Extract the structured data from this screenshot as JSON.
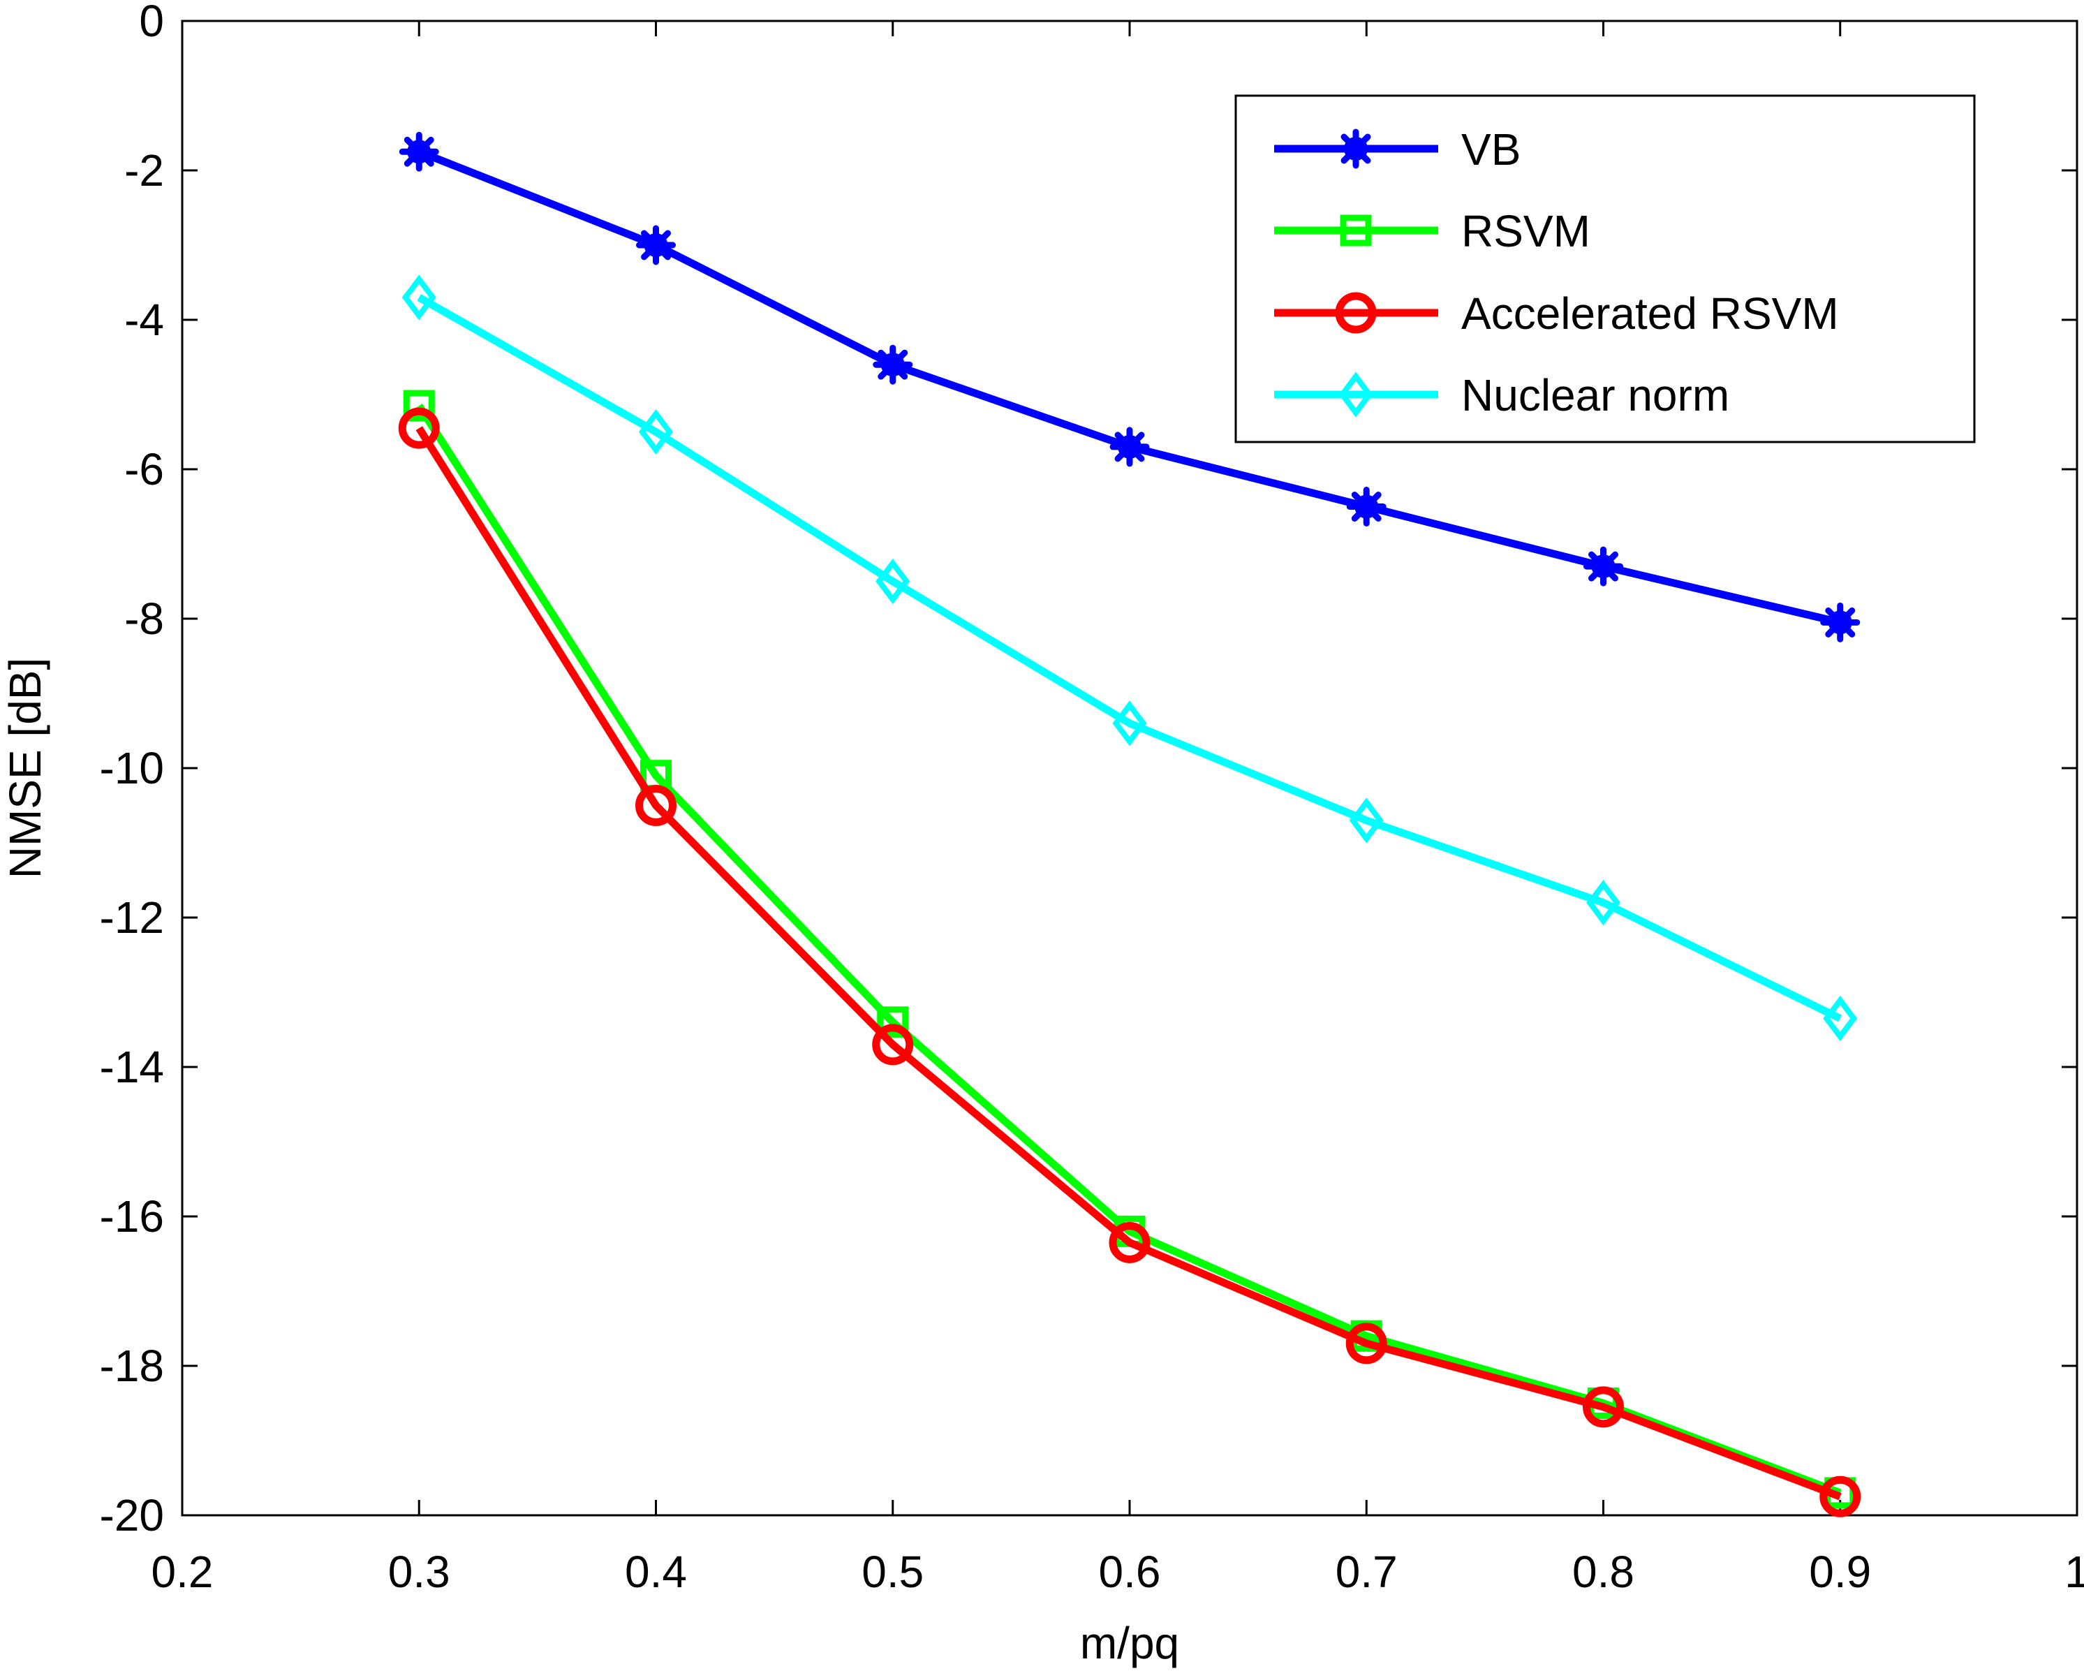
{
  "chart_data": {
    "type": "line",
    "title": "",
    "xlabel": "m/pq",
    "ylabel": "NMSE [dB]",
    "xlim": [
      0.2,
      1
    ],
    "ylim": [
      -20,
      0
    ],
    "xticks": [
      0.2,
      0.3,
      0.4,
      0.5,
      0.6,
      0.7,
      0.8,
      0.9,
      1
    ],
    "xtick_labels": [
      "0.2",
      "0.3",
      "0.4",
      "0.5",
      "0.6",
      "0.7",
      "0.8",
      "0.9",
      "1"
    ],
    "yticks": [
      0,
      -2,
      -4,
      -6,
      -8,
      -10,
      -12,
      -14,
      -16,
      -18,
      -20
    ],
    "ytick_labels": [
      "0",
      "-2",
      "-4",
      "-6",
      "-8",
      "-10",
      "-12",
      "-14",
      "-16",
      "-18",
      "-20"
    ],
    "grid": false,
    "legend_position": "top-right",
    "x": [
      0.3,
      0.4,
      0.5,
      0.6,
      0.7,
      0.8,
      0.9
    ],
    "series": [
      {
        "name": "VB",
        "color": "#0000ff",
        "marker": "asterisk-star",
        "values": [
          -1.75,
          -3.0,
          -4.6,
          -5.7,
          -6.5,
          -7.3,
          -8.05
        ]
      },
      {
        "name": "RSVM",
        "color": "#00ff00",
        "marker": "square",
        "values": [
          -5.15,
          -10.1,
          -13.4,
          -16.2,
          -17.6,
          -18.5,
          -19.7
        ]
      },
      {
        "name": "Accelerated RSVM",
        "color": "#ff0000",
        "marker": "circle",
        "values": [
          -5.45,
          -10.5,
          -13.7,
          -16.35,
          -17.7,
          -18.55,
          -19.75
        ]
      },
      {
        "name": "Nuclear norm",
        "color": "#00ffff",
        "marker": "diamond",
        "values": [
          -3.7,
          -5.5,
          -7.5,
          -9.4,
          -10.7,
          -11.8,
          -13.35
        ]
      }
    ]
  }
}
